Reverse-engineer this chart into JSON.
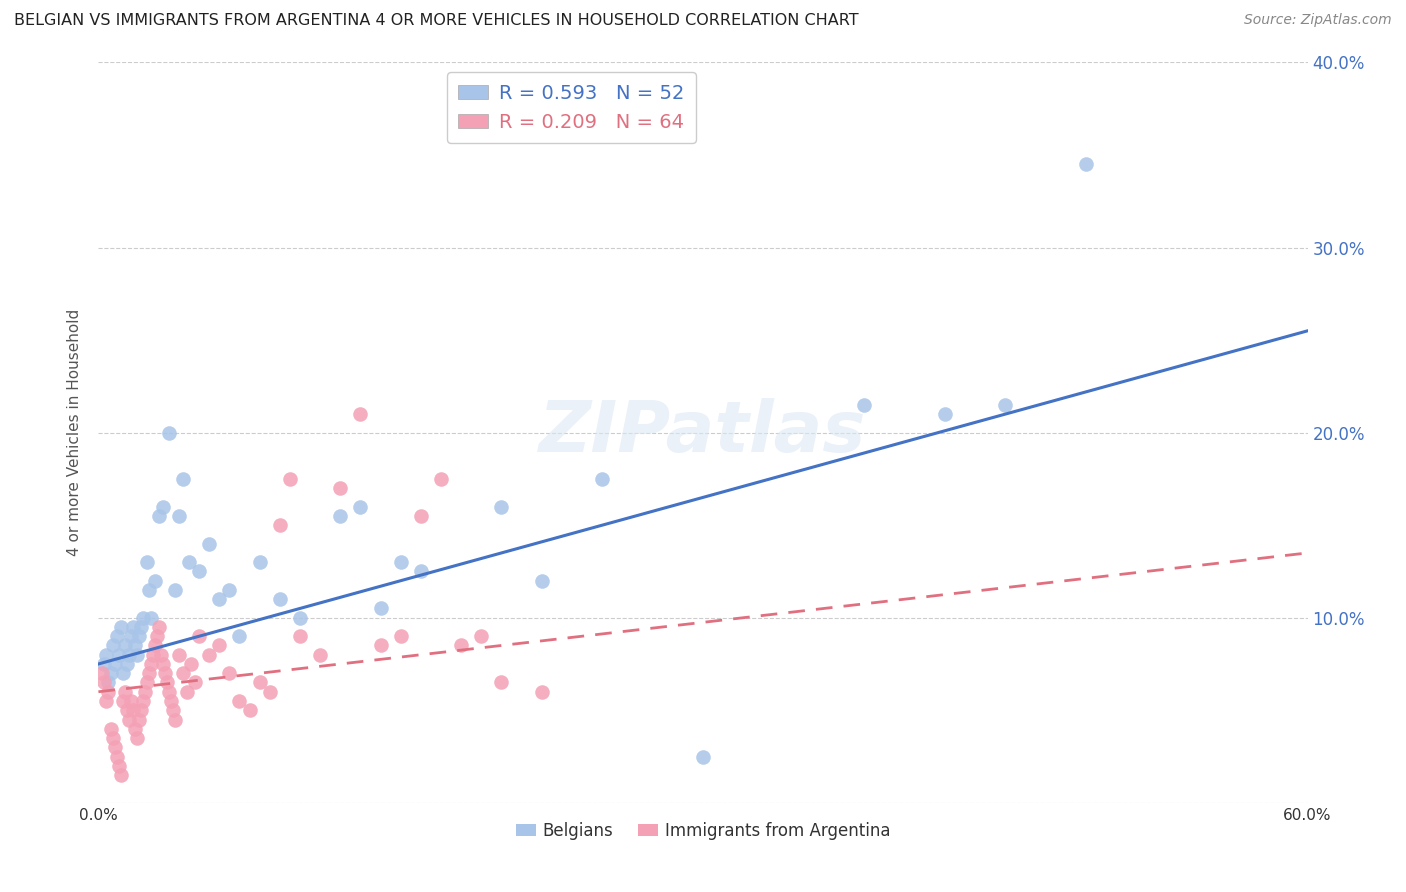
{
  "title": "BELGIAN VS IMMIGRANTS FROM ARGENTINA 4 OR MORE VEHICLES IN HOUSEHOLD CORRELATION CHART",
  "source": "Source: ZipAtlas.com",
  "ylabel": "4 or more Vehicles in Household",
  "xlim": [
    0.0,
    0.6
  ],
  "ylim": [
    0.0,
    0.4
  ],
  "xtick_positions": [
    0.0,
    0.1,
    0.2,
    0.3,
    0.4,
    0.5,
    0.6
  ],
  "xtick_labels": [
    "0.0%",
    "",
    "",
    "",
    "",
    "",
    "60.0%"
  ],
  "ytick_positions": [
    0.0,
    0.1,
    0.2,
    0.3,
    0.4
  ],
  "ytick_labels": [
    "",
    "10.0%",
    "20.0%",
    "30.0%",
    "40.0%"
  ],
  "belgian_color": "#a8c4e8",
  "argentina_color": "#f4a0b5",
  "belgian_line_color": "#4472c4",
  "argentina_line_color": "#e07080",
  "ytick_color": "#4472c4",
  "legend_belgian_R": "R = 0.593",
  "legend_belgian_N": "N = 52",
  "legend_argentina_R": "R = 0.209",
  "legend_argentina_N": "N = 64",
  "watermark": "ZIPatlas",
  "belgian_scatter_x": [
    0.003,
    0.004,
    0.005,
    0.006,
    0.007,
    0.008,
    0.009,
    0.01,
    0.011,
    0.012,
    0.013,
    0.014,
    0.015,
    0.016,
    0.017,
    0.018,
    0.019,
    0.02,
    0.021,
    0.022,
    0.024,
    0.025,
    0.026,
    0.028,
    0.03,
    0.032,
    0.035,
    0.038,
    0.04,
    0.042,
    0.045,
    0.05,
    0.055,
    0.06,
    0.065,
    0.07,
    0.08,
    0.09,
    0.1,
    0.12,
    0.13,
    0.14,
    0.15,
    0.16,
    0.2,
    0.22,
    0.25,
    0.3,
    0.38,
    0.42,
    0.45,
    0.49
  ],
  "belgian_scatter_y": [
    0.075,
    0.08,
    0.065,
    0.07,
    0.085,
    0.075,
    0.09,
    0.08,
    0.095,
    0.07,
    0.085,
    0.075,
    0.08,
    0.09,
    0.095,
    0.085,
    0.08,
    0.09,
    0.095,
    0.1,
    0.13,
    0.115,
    0.1,
    0.12,
    0.155,
    0.16,
    0.2,
    0.115,
    0.155,
    0.175,
    0.13,
    0.125,
    0.14,
    0.11,
    0.115,
    0.09,
    0.13,
    0.11,
    0.1,
    0.155,
    0.16,
    0.105,
    0.13,
    0.125,
    0.16,
    0.12,
    0.175,
    0.025,
    0.215,
    0.21,
    0.215,
    0.345
  ],
  "argentina_scatter_x": [
    0.002,
    0.003,
    0.004,
    0.005,
    0.006,
    0.007,
    0.008,
    0.009,
    0.01,
    0.011,
    0.012,
    0.013,
    0.014,
    0.015,
    0.016,
    0.017,
    0.018,
    0.019,
    0.02,
    0.021,
    0.022,
    0.023,
    0.024,
    0.025,
    0.026,
    0.027,
    0.028,
    0.029,
    0.03,
    0.031,
    0.032,
    0.033,
    0.034,
    0.035,
    0.036,
    0.037,
    0.038,
    0.04,
    0.042,
    0.044,
    0.046,
    0.048,
    0.05,
    0.055,
    0.06,
    0.065,
    0.07,
    0.075,
    0.08,
    0.085,
    0.09,
    0.095,
    0.1,
    0.11,
    0.12,
    0.13,
    0.14,
    0.15,
    0.16,
    0.17,
    0.18,
    0.19,
    0.2,
    0.22
  ],
  "argentina_scatter_y": [
    0.07,
    0.065,
    0.055,
    0.06,
    0.04,
    0.035,
    0.03,
    0.025,
    0.02,
    0.015,
    0.055,
    0.06,
    0.05,
    0.045,
    0.055,
    0.05,
    0.04,
    0.035,
    0.045,
    0.05,
    0.055,
    0.06,
    0.065,
    0.07,
    0.075,
    0.08,
    0.085,
    0.09,
    0.095,
    0.08,
    0.075,
    0.07,
    0.065,
    0.06,
    0.055,
    0.05,
    0.045,
    0.08,
    0.07,
    0.06,
    0.075,
    0.065,
    0.09,
    0.08,
    0.085,
    0.07,
    0.055,
    0.05,
    0.065,
    0.06,
    0.15,
    0.175,
    0.09,
    0.08,
    0.17,
    0.21,
    0.085,
    0.09,
    0.155,
    0.175,
    0.085,
    0.09,
    0.065,
    0.06
  ],
  "belgian_line_x": [
    0.0,
    0.6
  ],
  "belgian_line_y": [
    0.075,
    0.255
  ],
  "argentina_line_x": [
    0.0,
    0.6
  ],
  "argentina_line_y": [
    0.06,
    0.135
  ]
}
